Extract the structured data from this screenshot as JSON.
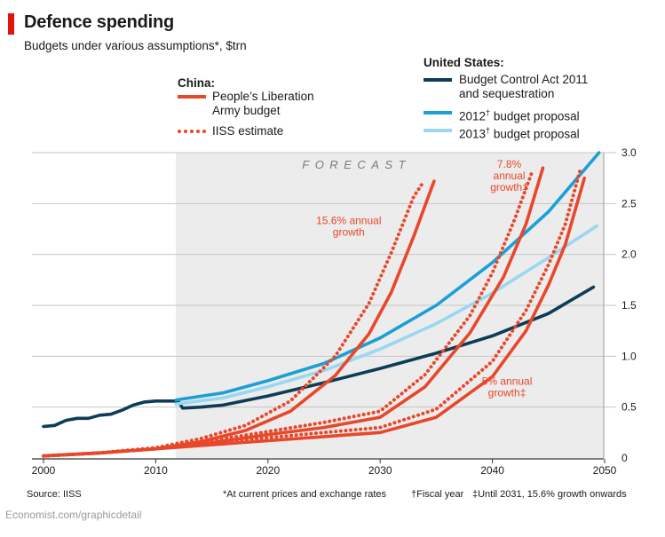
{
  "header": {
    "title": "Defence spending",
    "subtitle": "Budgets under various assumptions*, $trn"
  },
  "legend": {
    "china_heading": "China:",
    "us_heading": "United States:",
    "china_items": [
      {
        "line1": "People’s Liberation",
        "line2": "Army budget"
      },
      {
        "line1": "IISS estimate"
      }
    ],
    "us_items": [
      {
        "line1": "Budget Control Act 2011",
        "line2": "and sequestration"
      },
      {
        "pre": "2012",
        "mark": "†",
        "post": " budget proposal"
      },
      {
        "pre": "2013",
        "mark": "†",
        "post": " budget proposal"
      }
    ]
  },
  "footer": {
    "source": "Source: IISS",
    "note1": "*At current prices and exchange rates",
    "note2": "†Fiscal year",
    "note3": "‡Until 2031, 15.6% growth onwards",
    "brand": "Economist.com/graphicdetail"
  },
  "colors": {
    "china": "#e8472a",
    "bca": "#0d3d56",
    "p2012": "#1aa0d6",
    "p2013": "#9ad7f2",
    "forecast_bg": "#ececec",
    "grid": "#c6c6c6"
  },
  "chart_data": {
    "type": "line",
    "title": "Defence spending",
    "subtitle": "Budgets under various assumptions*, $trn",
    "xlim": [
      2000,
      2050
    ],
    "ylim": [
      0,
      3.0
    ],
    "xticks": [
      "2000",
      "2010",
      "2020",
      "2030",
      "2040",
      "2050"
    ],
    "yticks": [
      "0",
      "0.5",
      "1.0",
      "1.5",
      "2.0",
      "2.5",
      "3.0"
    ],
    "yaxis_position": "right",
    "forecast_region": {
      "start": 2011.8,
      "end": 2050,
      "label": "FORECAST"
    },
    "annotations": [
      {
        "lines": [
          "15.6% annual",
          "growth"
        ],
        "x": 2027.2,
        "y": 2.3
      },
      {
        "lines": [
          "7.8%",
          "annual",
          "growth‡"
        ],
        "x": 2041.5,
        "y": 2.85
      },
      {
        "lines": [
          "5% annual",
          "growth‡"
        ],
        "x": 2041.3,
        "y": 0.72
      }
    ],
    "series": [
      {
        "name": "Budget Control Act 2011 and sequestration",
        "group": "United States",
        "color": "#0d3d56",
        "style": "solid",
        "x": [
          2000,
          2001,
          2002,
          2003,
          2004,
          2005,
          2006,
          2007,
          2008,
          2009,
          2010,
          2011,
          2012,
          2012.4,
          2014,
          2016,
          2020,
          2025,
          2030,
          2035,
          2040,
          2045,
          2049
        ],
        "y": [
          0.31,
          0.32,
          0.37,
          0.39,
          0.39,
          0.42,
          0.43,
          0.47,
          0.52,
          0.55,
          0.56,
          0.56,
          0.56,
          0.49,
          0.5,
          0.52,
          0.61,
          0.74,
          0.88,
          1.03,
          1.2,
          1.42,
          1.68
        ]
      },
      {
        "name": "2012† budget proposal",
        "group": "United States",
        "color": "#1aa0d6",
        "style": "solid",
        "x": [
          2011.8,
          2016,
          2020,
          2025,
          2030,
          2035,
          2040,
          2045,
          2049.5
        ],
        "y": [
          0.57,
          0.64,
          0.76,
          0.93,
          1.18,
          1.5,
          1.92,
          2.42,
          3.0
        ]
      },
      {
        "name": "2013† budget proposal",
        "group": "United States",
        "color": "#9ad7f2",
        "style": "solid",
        "x": [
          2011.8,
          2016,
          2020,
          2025,
          2030,
          2035,
          2040,
          2045,
          2049.3
        ],
        "y": [
          0.53,
          0.59,
          0.7,
          0.86,
          1.07,
          1.32,
          1.62,
          1.97,
          2.28
        ]
      },
      {
        "name": "People’s Liberation Army budget (15.6% annual growth)",
        "group": "China",
        "color": "#e8472a",
        "style": "solid",
        "x": [
          2000,
          2005,
          2010,
          2014,
          2018,
          2022,
          2026,
          2029,
          2031,
          2033,
          2034.8
        ],
        "y": [
          0.02,
          0.05,
          0.09,
          0.16,
          0.27,
          0.46,
          0.81,
          1.22,
          1.63,
          2.18,
          2.72
        ]
      },
      {
        "name": "IISS estimate (15.6% annual growth)",
        "group": "China",
        "color": "#e8472a",
        "style": "dotted",
        "x": [
          2000,
          2005,
          2010,
          2014,
          2018,
          2022,
          2026,
          2029,
          2031,
          2033,
          2033.9
        ],
        "y": [
          0.02,
          0.05,
          0.1,
          0.19,
          0.32,
          0.56,
          1.0,
          1.52,
          2.02,
          2.57,
          2.72
        ]
      },
      {
        "name": "People’s Liberation Army budget (7.8% annual growth)",
        "group": "China",
        "color": "#e8472a",
        "style": "solid",
        "x": [
          2000,
          2005,
          2010,
          2015,
          2020,
          2025,
          2030,
          2034,
          2038,
          2041,
          2043,
          2044.5
        ],
        "y": [
          0.02,
          0.05,
          0.09,
          0.15,
          0.23,
          0.3,
          0.4,
          0.7,
          1.23,
          1.78,
          2.3,
          2.85
        ]
      },
      {
        "name": "IISS estimate (7.8% annual growth)",
        "group": "China",
        "color": "#e8472a",
        "style": "dotted",
        "x": [
          2000,
          2005,
          2010,
          2015,
          2020,
          2025,
          2030,
          2034,
          2038,
          2040,
          2042,
          2043.5
        ],
        "y": [
          0.02,
          0.05,
          0.1,
          0.17,
          0.26,
          0.35,
          0.46,
          0.82,
          1.4,
          1.82,
          2.35,
          2.8
        ]
      },
      {
        "name": "People’s Liberation Army budget (5% annual growth)",
        "group": "China",
        "color": "#e8472a",
        "style": "solid",
        "x": [
          2000,
          2005,
          2010,
          2015,
          2020,
          2025,
          2030,
          2035,
          2040,
          2043,
          2045,
          2046.5,
          2048.2
        ],
        "y": [
          0.02,
          0.05,
          0.09,
          0.13,
          0.17,
          0.21,
          0.25,
          0.4,
          0.8,
          1.25,
          1.7,
          2.1,
          2.75
        ]
      },
      {
        "name": "IISS estimate (5% annual growth)",
        "group": "China",
        "color": "#e8472a",
        "style": "dotted",
        "x": [
          2000,
          2005,
          2010,
          2015,
          2020,
          2025,
          2030,
          2035,
          2040,
          2043,
          2045,
          2046.5,
          2047.8
        ],
        "y": [
          0.02,
          0.05,
          0.1,
          0.15,
          0.2,
          0.25,
          0.3,
          0.48,
          0.95,
          1.45,
          1.9,
          2.3,
          2.82
        ]
      }
    ]
  }
}
